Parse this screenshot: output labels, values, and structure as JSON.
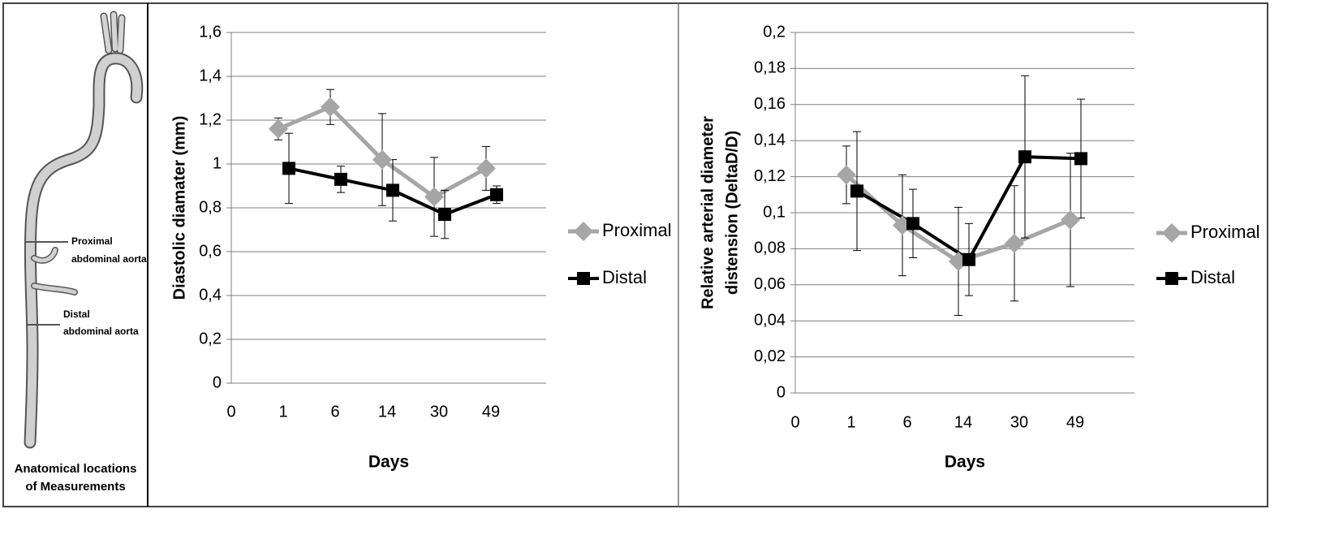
{
  "anatomy": {
    "labels": [
      "Proximal",
      "abdominal aorta",
      "Distal",
      "abdominal aorta"
    ],
    "caption": [
      "Anatomical locations",
      "of Measurements"
    ]
  },
  "chart_data": [
    {
      "type": "line",
      "ylabel": "Diastolic diamater (mm)",
      "xlabel": "Days",
      "categories": [
        "0",
        "1",
        "6",
        "14",
        "30",
        "49"
      ],
      "ylim": [
        0,
        1.6
      ],
      "yticks": [
        0,
        {
          "value": 0.2,
          "label": "0,2"
        },
        {
          "value": 0.4,
          "label": "0,4"
        },
        {
          "value": 0.6,
          "label": "0,6"
        },
        {
          "value": 0.8,
          "label": "0,8"
        },
        1,
        {
          "value": 1.2,
          "label": "1,2"
        },
        {
          "value": 1.4,
          "label": "1,4"
        },
        {
          "value": 1.6,
          "label": "1,6"
        }
      ],
      "grid": true,
      "legend": "right",
      "series": [
        {
          "name": "Proximal",
          "color": "#a6a6a6",
          "marker": "diamond",
          "values": [
            null,
            1.16,
            1.26,
            1.02,
            0.85,
            0.98
          ],
          "errors": [
            null,
            0.05,
            0.08,
            0.21,
            0.18,
            0.1
          ]
        },
        {
          "name": "Distal",
          "color": "#000000",
          "marker": "square",
          "values": [
            null,
            0.98,
            0.93,
            0.88,
            0.77,
            0.86
          ],
          "errors": [
            null,
            0.16,
            0.06,
            0.14,
            0.11,
            0.04
          ]
        }
      ]
    },
    {
      "type": "line",
      "ylabel_lines": [
        "Relative arterial diameter",
        "distension (DeltaD/D)"
      ],
      "xlabel": "Days",
      "categories": [
        "0",
        "1",
        "6",
        "14",
        "30",
        "49"
      ],
      "ylim": [
        0,
        0.2
      ],
      "yticks": [
        0,
        {
          "value": 0.02,
          "label": "0,02"
        },
        {
          "value": 0.04,
          "label": "0,04"
        },
        {
          "value": 0.06,
          "label": "0,06"
        },
        {
          "value": 0.08,
          "label": "0,08"
        },
        {
          "value": 0.1,
          "label": "0,1"
        },
        {
          "value": 0.12,
          "label": "0,12"
        },
        {
          "value": 0.14,
          "label": "0,14"
        },
        {
          "value": 0.16,
          "label": "0,16"
        },
        {
          "value": 0.18,
          "label": "0,18"
        },
        {
          "value": 0.2,
          "label": "0,2"
        }
      ],
      "grid": true,
      "legend": "right",
      "series": [
        {
          "name": "Proximal",
          "color": "#a6a6a6",
          "marker": "diamond",
          "values": [
            null,
            0.121,
            0.093,
            0.073,
            0.083,
            0.096
          ],
          "errors": [
            null,
            0.016,
            0.028,
            0.03,
            0.032,
            0.037
          ]
        },
        {
          "name": "Distal",
          "color": "#000000",
          "marker": "square",
          "values": [
            null,
            0.112,
            0.094,
            0.074,
            0.131,
            0.13
          ],
          "errors": [
            null,
            0.033,
            0.019,
            0.02,
            0.045,
            0.033
          ]
        }
      ]
    }
  ]
}
